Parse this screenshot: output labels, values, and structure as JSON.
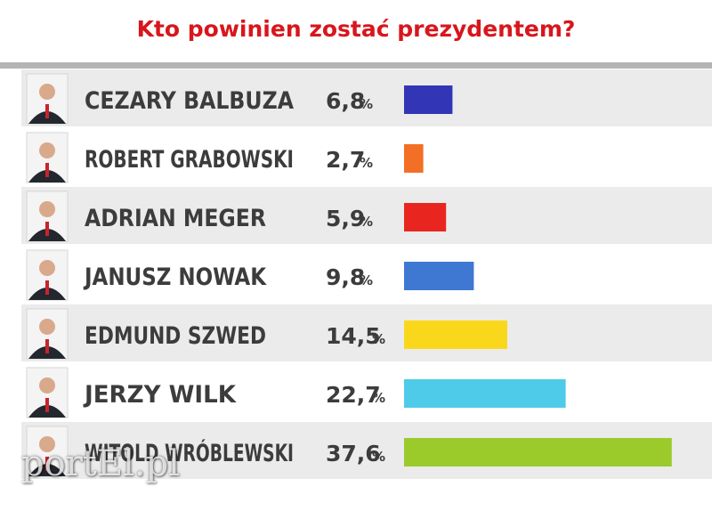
{
  "chart_data": {
    "type": "bar",
    "orientation": "horizontal",
    "title": "Kto powinien zostać prezydentem?",
    "value_suffix": "%",
    "categories": [
      "CEZARY BALBUZA",
      "ROBERT GRABOWSKI",
      "ADRIAN MEGER",
      "JANUSZ NOWAK",
      "EDMUND SZWED",
      "JERZY WILK",
      "WITOLD WRÓBLEWSKI"
    ],
    "values": [
      6.8,
      2.7,
      5.9,
      9.8,
      14.5,
      22.7,
      37.6
    ],
    "value_labels": [
      "6,8",
      "2,7",
      "5,9",
      "9,8",
      "14,5",
      "22,7",
      "37,6"
    ],
    "colors": [
      "#3235b5",
      "#f26f25",
      "#e8261f",
      "#3e78d3",
      "#f9d81c",
      "#4ecbe8",
      "#9bcb2b"
    ],
    "row_stripes": [
      "#ebebeb",
      "#ffffff"
    ],
    "xlim": [
      0,
      40
    ],
    "grid": false,
    "legend": "none"
  },
  "watermark": "portEl.pl"
}
